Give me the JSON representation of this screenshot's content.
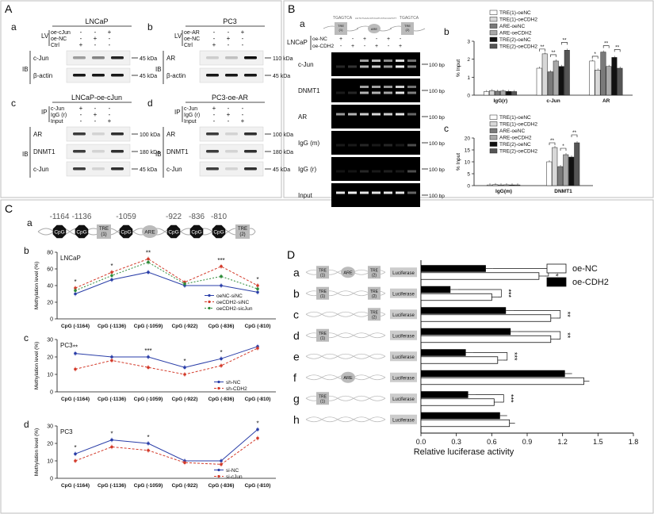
{
  "panel_letters": {
    "A": "A",
    "B": "B",
    "C": "C",
    "D": "D"
  },
  "blots": {
    "a": {
      "letter": "a",
      "title": "LNCaP",
      "lv": "LV",
      "rows": [
        "oe-cJun",
        "oe-NC",
        "Ctrl"
      ],
      "marks": [
        [
          "-",
          "-",
          "+"
        ],
        [
          "-",
          "+",
          "-"
        ],
        [
          "+",
          "-",
          "-"
        ]
      ],
      "ib": "IB",
      "bands": [
        {
          "label": "c-Jun",
          "kda": "45 kDa"
        },
        {
          "label": "β-actin",
          "kda": "45 kDa"
        }
      ]
    },
    "b": {
      "letter": "b",
      "title": "PC3",
      "lv": "LV",
      "rows": [
        "oe-AR",
        "oe-NC",
        "Ctrl"
      ],
      "marks": [
        [
          "-",
          "-",
          "+"
        ],
        [
          "-",
          "+",
          "-"
        ],
        [
          "+",
          "-",
          "-"
        ]
      ],
      "ib": "IB",
      "bands": [
        {
          "label": "AR",
          "kda": "110 kDa"
        },
        {
          "label": "β-actin",
          "kda": "45 kDa"
        }
      ]
    },
    "c": {
      "letter": "c",
      "title": "LNCaP-oe-cJun",
      "ip": "IP",
      "rows": [
        "c-Jun",
        "IgG (r)",
        "Input"
      ],
      "marks": [
        [
          "+",
          "-",
          "-"
        ],
        [
          "-",
          "+",
          "-"
        ],
        [
          "-",
          "-",
          "+"
        ]
      ],
      "ib": "IB",
      "bands": [
        {
          "label": "AR",
          "kda": "100 kDa"
        },
        {
          "label": "DNMT1",
          "kda": "180 kDa"
        },
        {
          "label": "c-Jun",
          "kda": "45 kDa"
        }
      ]
    },
    "d": {
      "letter": "d",
      "title": "PC3-oe-AR",
      "ip": "IP",
      "rows": [
        "c-Jun",
        "IgG (r)",
        "Input"
      ],
      "marks": [
        [
          "+",
          "-",
          "-"
        ],
        [
          "-",
          "+",
          "-"
        ],
        [
          "-",
          "-",
          "+"
        ]
      ],
      "ib": "IB",
      "bands": [
        {
          "label": "AR",
          "kda": "100 kDa"
        },
        {
          "label": "DNMT1",
          "kda": "180 kDa"
        },
        {
          "label": "c-Jun",
          "kda": "45 kDa"
        }
      ]
    }
  },
  "gel": {
    "letter": "a",
    "seq1": "TGAGTCA",
    "seq2": "AGTGTGAACATCGATCATGCAGTATT",
    "seq3": "TGAGTCA",
    "top_labels": [
      "TRE\n(1)",
      "ARE",
      "TRE\n(2)"
    ],
    "cell": "LNCaP",
    "rows": [
      "oe-NC",
      "oe-CDH2"
    ],
    "marks": [
      [
        "+",
        "-",
        "+",
        "-",
        "+",
        "-"
      ],
      [
        "-",
        "+",
        "-",
        "+",
        "-",
        "+"
      ]
    ],
    "lanes": [
      "c-Jun",
      "DNMT1",
      "AR",
      "IgG (m)",
      "IgG (r)",
      "Input"
    ],
    "bp": "100 bp"
  },
  "promoter_labels": {
    "tre1": "TRE\n(1)",
    "tre2": "TRE\n(2)",
    "are": "ARE",
    "cpg": "CpG"
  },
  "cpg_positions": [
    "-1164",
    "-1136",
    "-1059",
    "-922",
    "-836",
    "-810"
  ],
  "luciferase": {
    "letter": "D",
    "rows": [
      "a",
      "b",
      "c",
      "d",
      "e",
      "f",
      "g",
      "h"
    ],
    "label": "Luciferase"
  },
  "chart_data": [
    {
      "id": "Bb",
      "type": "bar",
      "panel": "b",
      "ylabel": "% Input",
      "categories": [
        "IgG(r)",
        "c-Jun",
        "AR"
      ],
      "ylim": [
        0,
        3
      ],
      "yticks": [
        0,
        1,
        2,
        3
      ],
      "series": [
        {
          "name": "TRE(1)-oeNC",
          "values": [
            0.2,
            1.5,
            1.9
          ],
          "fill": "#ffffff"
        },
        {
          "name": "TRE(1)-oeCDH2",
          "values": [
            0.25,
            2.3,
            1.4
          ],
          "fill": "#d8d8d8"
        },
        {
          "name": "ARE-oeNC",
          "values": [
            0.22,
            1.3,
            2.4
          ],
          "fill": "#7a7a7a"
        },
        {
          "name": "ARE-oeCDH2",
          "values": [
            0.23,
            1.9,
            1.6
          ],
          "fill": "#a8a8a8"
        },
        {
          "name": "TRE(2)-oeNC",
          "values": [
            0.21,
            1.6,
            2.1
          ],
          "fill": "#111111"
        },
        {
          "name": "TRE(2)-oeCDH2",
          "values": [
            0.2,
            2.5,
            1.5
          ],
          "fill": "#555555"
        }
      ],
      "annotations": [
        "**",
        "**",
        "**",
        "*",
        "**",
        "**"
      ]
    },
    {
      "id": "Bc",
      "type": "bar",
      "panel": "c",
      "ylabel": "% Input",
      "categories": [
        "IgG(m)",
        "DNMT1"
      ],
      "ylim": [
        0,
        20
      ],
      "yticks": [
        0,
        5,
        10,
        15,
        20
      ],
      "series": [
        {
          "name": "TRE(1)-oeNC",
          "values": [
            0.3,
            10
          ],
          "fill": "#ffffff"
        },
        {
          "name": "TRE(1)-oeCDH2",
          "values": [
            0.4,
            16
          ],
          "fill": "#d8d8d8"
        },
        {
          "name": "ARE-oeNC",
          "values": [
            0.3,
            8
          ],
          "fill": "#7a7a7a"
        },
        {
          "name": "ARE-oeCDH2",
          "values": [
            0.35,
            13
          ],
          "fill": "#a8a8a8"
        },
        {
          "name": "TRE(2)-oeNC",
          "values": [
            0.3,
            12
          ],
          "fill": "#111111"
        },
        {
          "name": "TRE(2)-oeCDH2",
          "values": [
            0.3,
            18
          ],
          "fill": "#555555"
        }
      ],
      "annotations": [
        "**",
        "*",
        "**"
      ]
    },
    {
      "id": "Cb",
      "type": "line",
      "panel": "b",
      "title": "LNCaP",
      "ylabel": "Methylation level (%)",
      "categories": [
        "CpG (-1164)",
        "CpG (-1136)",
        "CpG (-1059)",
        "CpG (-922)",
        "CpG (-836)",
        "CpG (-810)"
      ],
      "ylim": [
        0,
        80
      ],
      "yticks": [
        0,
        20,
        40,
        60,
        80
      ],
      "series": [
        {
          "name": "oeNC-siNC",
          "values": [
            30,
            47,
            56,
            40,
            40,
            32
          ],
          "color": "#2a3ea8"
        },
        {
          "name": "oeCDH2-siNC",
          "values": [
            37,
            56,
            72,
            44,
            63,
            40
          ],
          "color": "#d33a2a"
        },
        {
          "name": "oeCDH2-sicJun",
          "values": [
            34,
            52,
            68,
            42,
            51,
            36
          ],
          "color": "#2e8b3a"
        }
      ],
      "annotations": [
        "*",
        "*",
        "**",
        "***",
        "*"
      ]
    },
    {
      "id": "Cc",
      "type": "line",
      "panel": "c",
      "title": "PC3",
      "ylabel": "Methylation level (%)",
      "categories": [
        "CpG (-1164)",
        "CpG (-1136)",
        "CpG (-1059)",
        "CpG (-922)",
        "CpG (-836)",
        "CpG (-810)"
      ],
      "ylim": [
        0,
        30
      ],
      "yticks": [
        0,
        10,
        20,
        30
      ],
      "series": [
        {
          "name": "sh-NC",
          "values": [
            22,
            20,
            20,
            14,
            19,
            26
          ],
          "color": "#2a3ea8"
        },
        {
          "name": "sh-CDH2",
          "values": [
            13,
            18,
            14,
            10,
            15,
            25
          ],
          "color": "#d33a2a"
        }
      ],
      "annotations": [
        "**",
        "***",
        "*",
        "*"
      ]
    },
    {
      "id": "Cd",
      "type": "line",
      "panel": "d",
      "title": "PC3",
      "ylabel": "Methylation level (%)",
      "categories": [
        "CpG (-1164)",
        "CpG (-1136)",
        "CpG (-1059)",
        "CpG (-922)",
        "CpG (-836)",
        "CpG (-810)"
      ],
      "ylim": [
        0,
        30
      ],
      "yticks": [
        0,
        10,
        20,
        30
      ],
      "series": [
        {
          "name": "si-NC",
          "values": [
            14,
            22,
            20,
            10,
            10,
            28
          ],
          "color": "#2a3ea8"
        },
        {
          "name": "si-cJun",
          "values": [
            10,
            18,
            16,
            9,
            8,
            23
          ],
          "color": "#d33a2a"
        }
      ],
      "annotations": [
        "*",
        "*",
        "*",
        "*"
      ]
    },
    {
      "id": "D",
      "type": "bar",
      "orientation": "horizontal",
      "xlabel": "Relative luciferase activity",
      "categories": [
        "a",
        "b",
        "c",
        "d",
        "e",
        "f",
        "g",
        "h"
      ],
      "xlim": [
        0,
        1.8
      ],
      "xticks": [
        "0.0",
        "0.3",
        "0.6",
        "0.9",
        "1.2",
        "1.5",
        "1.8"
      ],
      "series": [
        {
          "name": "oe-NC",
          "values": [
            1.0,
            0.6,
            1.1,
            1.1,
            0.65,
            1.38,
            0.62,
            0.75
          ],
          "fill": "#ffffff"
        },
        {
          "name": "oe-CDH2",
          "values": [
            0.55,
            0.25,
            0.72,
            0.76,
            0.38,
            1.22,
            0.4,
            0.67
          ],
          "fill": "#000000"
        }
      ],
      "annotations": [
        "***",
        "***",
        "**",
        "**",
        "***",
        "",
        "***",
        ""
      ]
    }
  ]
}
